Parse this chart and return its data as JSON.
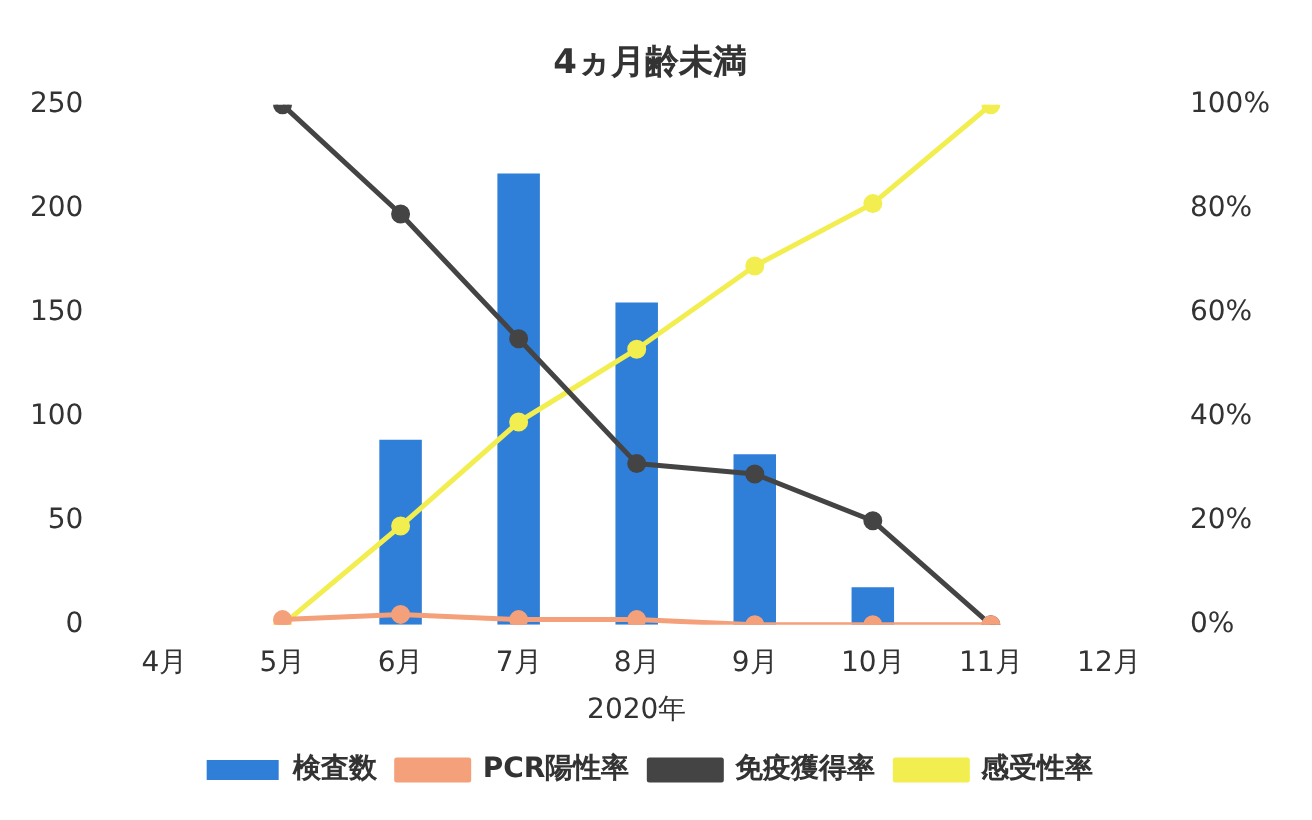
{
  "chart_data": {
    "type": "bar",
    "title": "4ヵ月齢未満",
    "xlabel": "2020年",
    "categories": [
      "4月",
      "5月",
      "6月",
      "7月",
      "8月",
      "9月",
      "10月",
      "11月",
      "12月"
    ],
    "series": [
      {
        "name": "検査数",
        "color": "#2f7ed8",
        "values": [
          null,
          null,
          89,
          217,
          155,
          82,
          18,
          null,
          null
        ]
      },
      {
        "name": "PCR陽性率",
        "type": "line",
        "axis": "y2",
        "color": "#f4a07a",
        "values": [
          null,
          1,
          2,
          1,
          1,
          0,
          0,
          0,
          null
        ]
      },
      {
        "name": "免疫獲得率",
        "type": "line",
        "axis": "y2",
        "color": "#444444",
        "values": [
          null,
          100,
          79,
          55,
          31,
          29,
          20,
          0,
          null
        ]
      },
      {
        "name": "感受性率",
        "type": "line",
        "axis": "y2",
        "color": "#f2ee50",
        "values": [
          null,
          0,
          19,
          39,
          53,
          69,
          81,
          100,
          null
        ]
      }
    ],
    "ylim": [
      0,
      250
    ],
    "yticks": [
      0,
      50,
      100,
      150,
      200,
      250
    ],
    "y2lim": [
      0,
      100
    ],
    "y2ticks": [
      {
        "value": 0,
        "label": "0%"
      },
      {
        "value": 20,
        "label": "20%"
      },
      {
        "value": 40,
        "label": "40%"
      },
      {
        "value": 60,
        "label": "60%"
      },
      {
        "value": 80,
        "label": "80%"
      },
      {
        "value": 100,
        "label": "100%"
      }
    ],
    "grid": false,
    "legend": "bottom",
    "marker": "circle",
    "line_style": "solid"
  }
}
